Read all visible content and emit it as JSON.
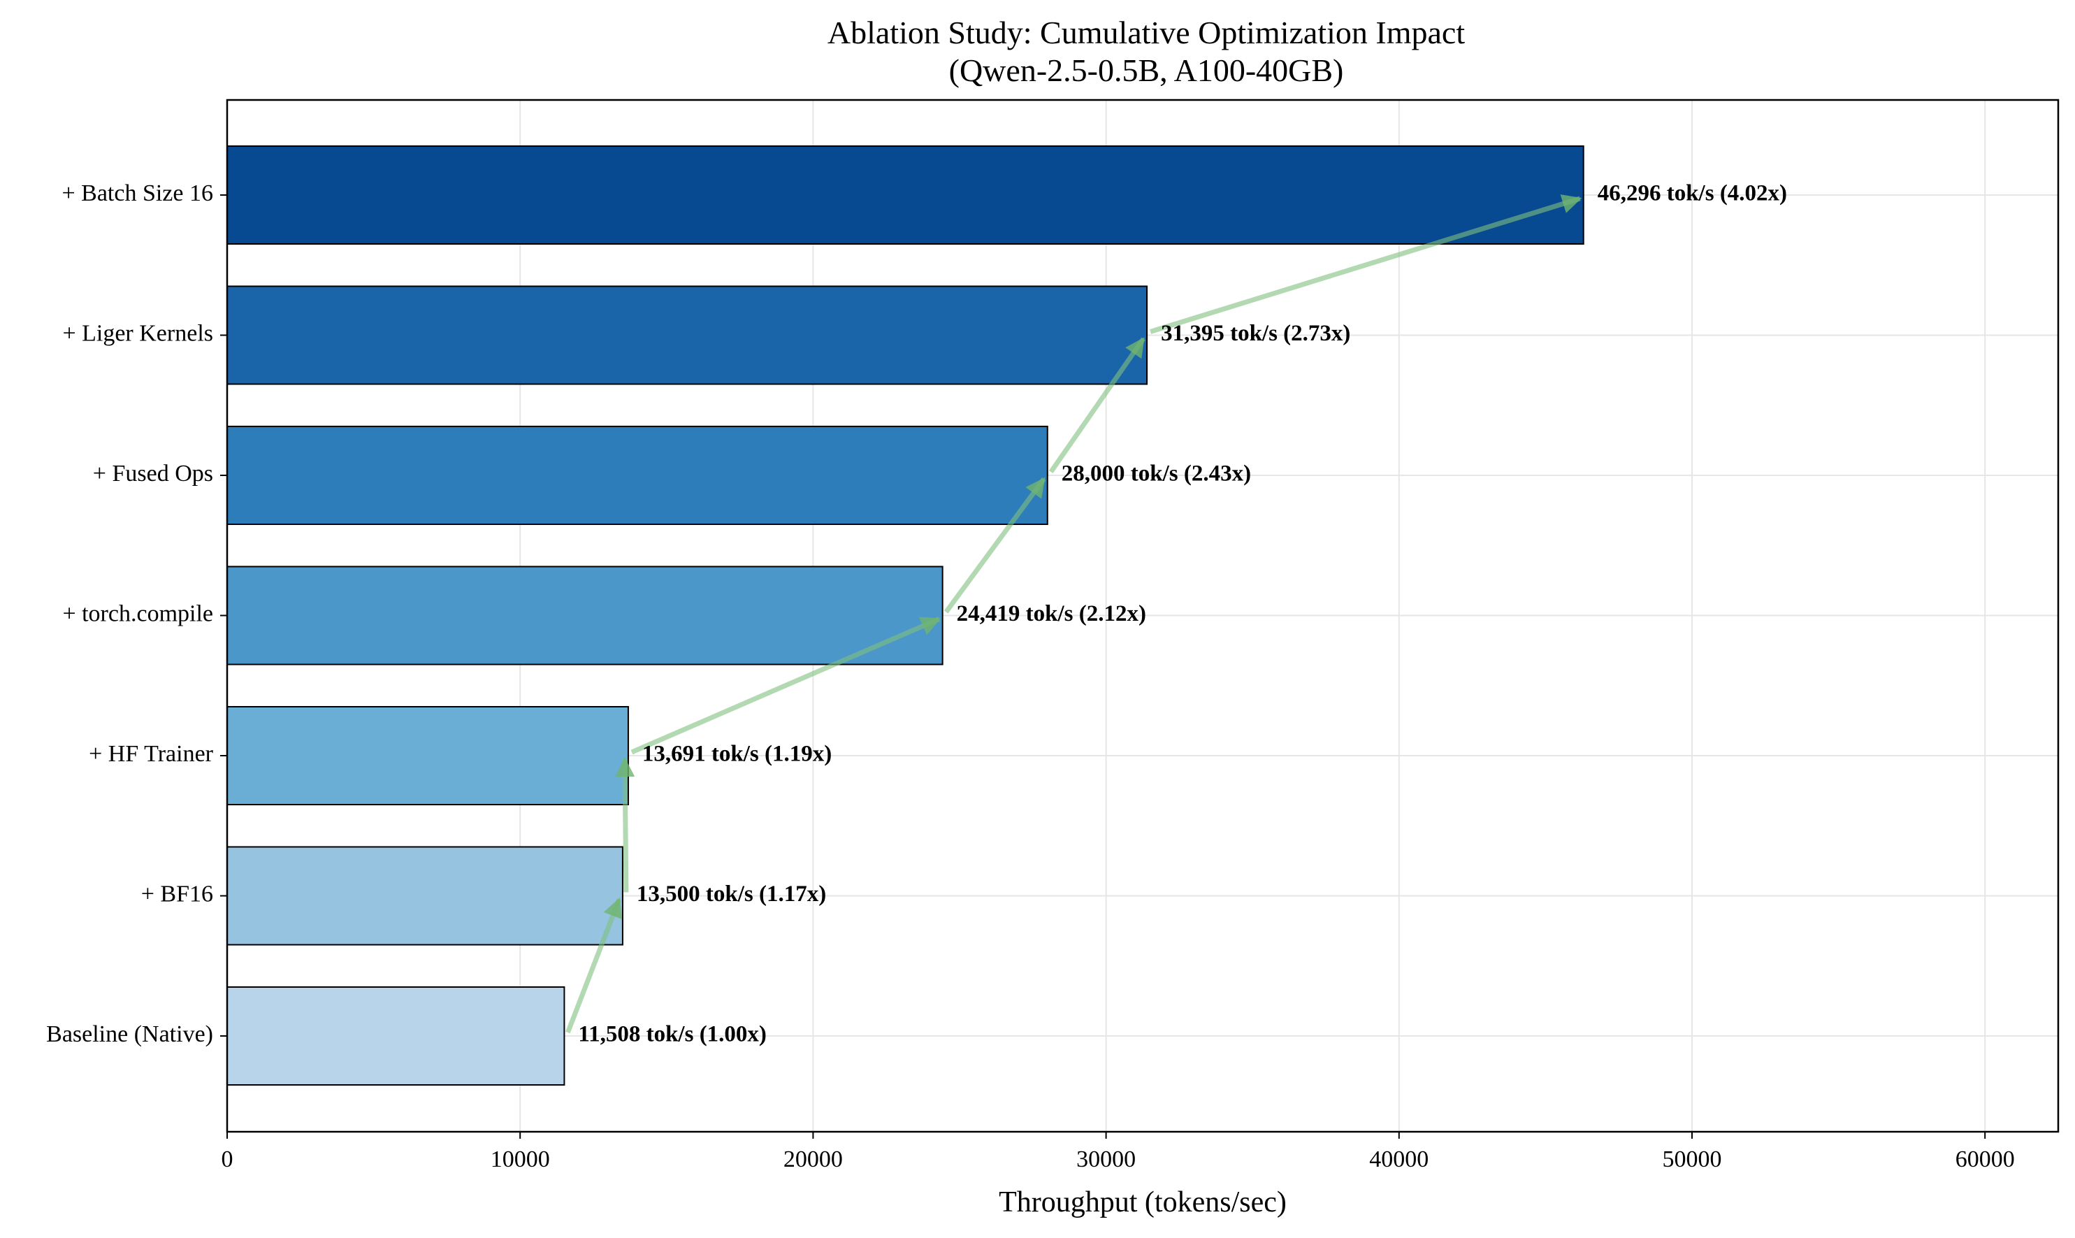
{
  "chart_data": {
    "type": "bar",
    "orientation": "horizontal",
    "title": "Ablation Study: Cumulative Optimization Impact",
    "subtitle": "(Qwen-2.5-0.5B, A100-40GB)",
    "xlabel": "Throughput (tokens/sec)",
    "ylabel": "",
    "xlim": [
      0,
      62500
    ],
    "xticks": [
      "0",
      "10000",
      "20000",
      "30000",
      "40000",
      "50000",
      "60000"
    ],
    "grid": true,
    "categories": [
      "Baseline (Native)",
      "+ BF16",
      "+ HF Trainer",
      "+ torch.compile",
      "+ Fused Ops",
      "+ Liger Kernels",
      "+ Batch Size 16"
    ],
    "values": [
      11508,
      13500,
      13691,
      24419,
      28000,
      31395,
      46296
    ],
    "data_labels": [
      "11,508 tok/s (1.00x)",
      "13,500 tok/s (1.17x)",
      "13,691 tok/s (1.19x)",
      "24,419 tok/s (2.12x)",
      "28,000 tok/s (2.43x)",
      "31,395 tok/s (2.73x)",
      "46,296 tok/s (4.02x)"
    ],
    "bar_colors": [
      "#b8d4ea",
      "#95c3e0",
      "#6aaed6",
      "#4b97c9",
      "#2e7dbb",
      "#1a64a9",
      "#084a91"
    ],
    "arrow_color": "#7fbf7f"
  }
}
